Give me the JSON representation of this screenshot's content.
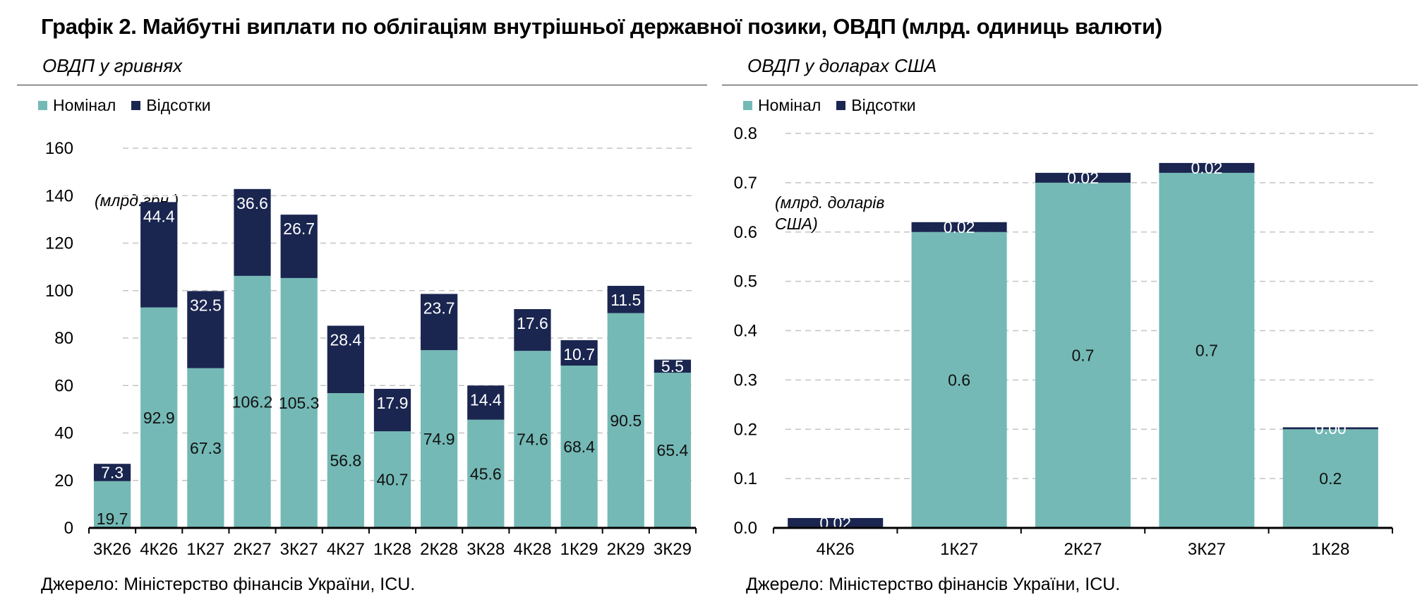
{
  "title": "Графік 2. Майбутні виплати по облігаціям внутрішньої державної позики, ОВДП (млрд. одиниць валюти)",
  "colors": {
    "nominal": "#74b9b6",
    "interest": "#1a2650",
    "grid": "#c4c4c4",
    "axis": "#000000"
  },
  "panels": {
    "uah": {
      "subtitle": "ОВДП у гривнях",
      "legend": [
        "Номінал",
        "Відсотки"
      ],
      "unit_note": "(млрд.грн.)",
      "source": "Джерело: Міністерство фінансів України, ICU."
    },
    "usd": {
      "subtitle": "ОВДП у доларах США",
      "legend": [
        "Номінал",
        "Відсотки"
      ],
      "unit_note_line1": "(млрд. доларів",
      "unit_note_line2": "США)",
      "source": "Джерело: Міністерство фінансів України, ICU."
    }
  },
  "chart_data": [
    {
      "type": "bar",
      "stacked": true,
      "title": "ОВДП у гривнях",
      "ylabel": "(млрд.грн.)",
      "ylim": [
        0,
        160
      ],
      "yticks": [
        0,
        20,
        40,
        60,
        80,
        100,
        120,
        140,
        160
      ],
      "ytick_labels": [
        "0",
        "20",
        "40",
        "60",
        "80",
        "100",
        "120",
        "140",
        "160"
      ],
      "grid": true,
      "legend_position": "top-left",
      "categories": [
        "3К26",
        "4К26",
        "1К27",
        "2К27",
        "3К27",
        "4К27",
        "1К28",
        "2К28",
        "3К28",
        "4К28",
        "1К29",
        "2К29",
        "3К29"
      ],
      "series": [
        {
          "name": "Номінал",
          "values": [
            19.7,
            92.9,
            67.3,
            106.2,
            105.3,
            56.8,
            40.7,
            74.9,
            45.6,
            74.6,
            68.4,
            90.5,
            65.4
          ],
          "labels": [
            "19.7",
            "92.9",
            "67.3",
            "106.2",
            "105.3",
            "56.8",
            "40.7",
            "74.9",
            "45.6",
            "74.6",
            "68.4",
            "90.5",
            "65.4"
          ]
        },
        {
          "name": "Відсотки",
          "values": [
            7.3,
            44.4,
            32.5,
            36.6,
            26.7,
            28.4,
            17.9,
            23.7,
            14.4,
            17.6,
            10.7,
            11.5,
            5.5
          ],
          "labels": [
            "7.3",
            "44.4",
            "32.5",
            "36.6",
            "26.7",
            "28.4",
            "17.9",
            "23.7",
            "14.4",
            "17.6",
            "10.7",
            "11.5",
            "5.5"
          ]
        }
      ]
    },
    {
      "type": "bar",
      "stacked": true,
      "title": "ОВДП у доларах США",
      "ylabel": "(млрд. доларів США)",
      "ylim": [
        0,
        0.8
      ],
      "yticks": [
        0,
        0.1,
        0.2,
        0.3,
        0.4,
        0.5,
        0.6,
        0.7,
        0.8
      ],
      "ytick_labels": [
        "0.0",
        "0.1",
        "0.2",
        "0.3",
        "0.4",
        "0.5",
        "0.6",
        "0.7",
        "0.8"
      ],
      "grid": true,
      "legend_position": "top-left",
      "categories": [
        "4К26",
        "1К27",
        "2К27",
        "3К27",
        "1К28"
      ],
      "series": [
        {
          "name": "Номінал",
          "values": [
            0,
            0.6,
            0.7,
            0.72,
            0.2
          ],
          "labels": [
            "",
            "0.6",
            "0.7",
            "0.7",
            "0.2"
          ]
        },
        {
          "name": "Відсотки",
          "values": [
            0.02,
            0.02,
            0.02,
            0.02,
            0.004
          ],
          "labels": [
            "0.02",
            "0.02",
            "0.02",
            "0.02",
            "0.00"
          ]
        }
      ]
    }
  ]
}
